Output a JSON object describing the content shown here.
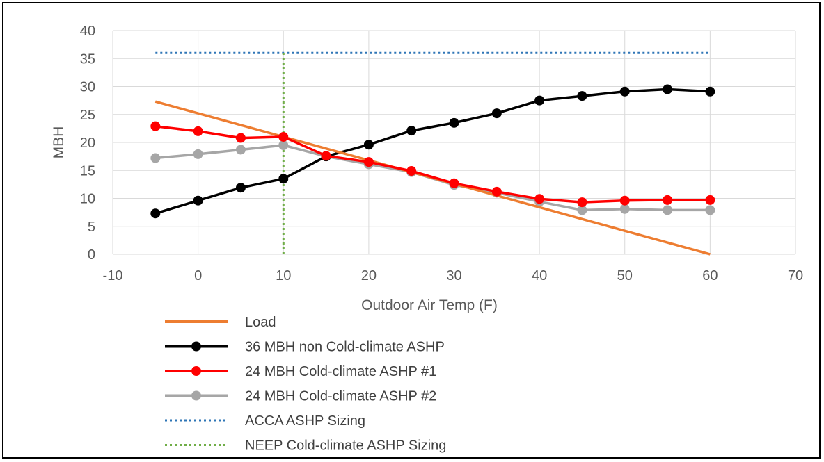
{
  "chart_data": {
    "type": "line",
    "title": "",
    "xlabel": "Outdoor Air Temp (F)",
    "ylabel": "MBH",
    "xlim": [
      -10,
      70
    ],
    "ylim": [
      0,
      40
    ],
    "xticks": [
      -10,
      0,
      10,
      20,
      30,
      40,
      50,
      60,
      70
    ],
    "yticks": [
      0,
      5,
      10,
      15,
      20,
      25,
      30,
      35,
      40
    ],
    "grid": true,
    "legend_position": "bottom",
    "series": [
      {
        "name": "Load",
        "color": "#ED7D31",
        "style": "solid",
        "markers": false,
        "x": [
          -5,
          60
        ],
        "y": [
          27.3,
          0
        ]
      },
      {
        "name": "36 MBH non Cold-climate ASHP",
        "color": "#000000",
        "style": "solid",
        "markers": true,
        "x": [
          -5,
          0,
          5,
          10,
          15,
          20,
          25,
          30,
          35,
          40,
          45,
          50,
          55,
          60
        ],
        "y": [
          7.3,
          9.6,
          11.9,
          13.5,
          17.5,
          19.6,
          22.1,
          23.5,
          25.2,
          27.5,
          28.3,
          29.1,
          29.5,
          29.1
        ]
      },
      {
        "name": "24 MBH Cold-climate ASHP #1",
        "color": "#FF0000",
        "style": "solid",
        "markers": true,
        "x": [
          -5,
          0,
          5,
          10,
          15,
          20,
          25,
          30,
          35,
          40,
          45,
          50,
          55,
          60
        ],
        "y": [
          22.9,
          22.0,
          20.8,
          21.0,
          17.6,
          16.5,
          14.9,
          12.7,
          11.2,
          9.9,
          9.3,
          9.6,
          9.7,
          9.7
        ]
      },
      {
        "name": "24 MBH Cold-climate ASHP #2",
        "color": "#A6A6A6",
        "style": "solid",
        "markers": true,
        "x": [
          -5,
          0,
          5,
          10,
          15,
          20,
          25,
          30,
          35,
          40,
          45,
          50,
          55,
          60
        ],
        "y": [
          17.2,
          17.9,
          18.7,
          19.5,
          17.5,
          16.1,
          14.7,
          12.4,
          11.0,
          9.4,
          7.9,
          8.1,
          7.9,
          7.9
        ]
      },
      {
        "name": "ACCA ASHP Sizing",
        "color": "#2E75B6",
        "style": "dotted",
        "markers": false,
        "x": [
          -5,
          60
        ],
        "y": [
          36,
          36
        ]
      },
      {
        "name": "NEEP Cold-climate ASHP Sizing",
        "color": "#70AD47",
        "style": "dotted",
        "markers": false,
        "x": [
          10,
          10
        ],
        "y": [
          0,
          36
        ]
      }
    ]
  }
}
